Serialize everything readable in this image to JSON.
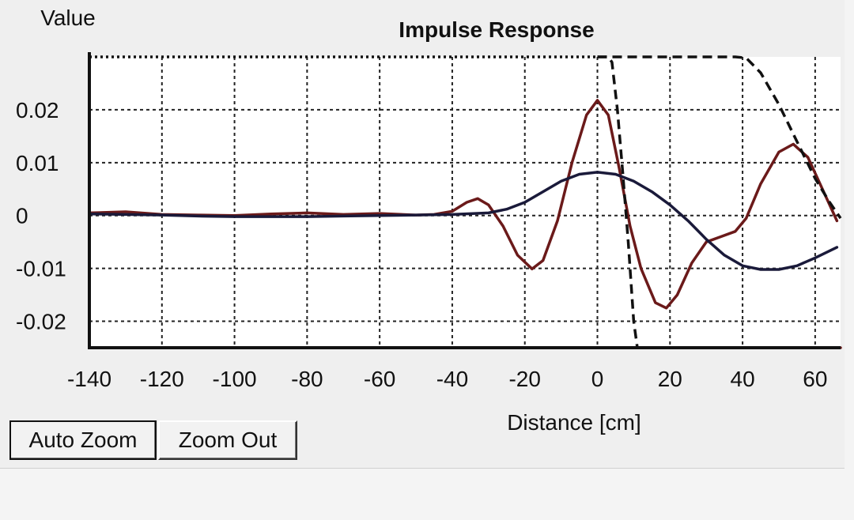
{
  "chart_data": {
    "type": "line",
    "title": "Impulse Response",
    "xlabel": "Distance [cm]",
    "ylabel": "Value",
    "xlim": [
      -140,
      67
    ],
    "ylim": [
      -0.025,
      0.03
    ],
    "x_ticks": [
      -140,
      -120,
      -100,
      -80,
      -60,
      -40,
      -20,
      0,
      20,
      40,
      60
    ],
    "y_ticks": [
      {
        "value": 0.02,
        "label": "0.02"
      },
      {
        "value": 0.01,
        "label": "0.01"
      },
      {
        "value": 0,
        "label": "0"
      },
      {
        "value": -0.01,
        "label": "-0.01"
      },
      {
        "value": -0.02,
        "label": "-0.02"
      }
    ],
    "grid": true,
    "series": [
      {
        "color": "#6b1a1a",
        "style": "solid",
        "points": [
          [
            -140,
            0.0005
          ],
          [
            -130,
            0.0007
          ],
          [
            -120,
            0.0002
          ],
          [
            -110,
            0.0001
          ],
          [
            -100,
            0.0
          ],
          [
            -90,
            0.0003
          ],
          [
            -80,
            0.0005
          ],
          [
            -70,
            0.0002
          ],
          [
            -60,
            0.0004
          ],
          [
            -50,
            0.0001
          ],
          [
            -45,
            0.0002
          ],
          [
            -40,
            0.0008
          ],
          [
            -36,
            0.0025
          ],
          [
            -33,
            0.0032
          ],
          [
            -30,
            0.002
          ],
          [
            -26,
            -0.002
          ],
          [
            -22,
            -0.0075
          ],
          [
            -18,
            -0.0101
          ],
          [
            -15,
            -0.0085
          ],
          [
            -11,
            -0.001
          ],
          [
            -7,
            0.01
          ],
          [
            -3,
            0.019
          ],
          [
            0,
            0.0218
          ],
          [
            3,
            0.019
          ],
          [
            6,
            0.009
          ],
          [
            9,
            -0.002
          ],
          [
            12,
            -0.01
          ],
          [
            16,
            -0.0165
          ],
          [
            19,
            -0.0175
          ],
          [
            22,
            -0.015
          ],
          [
            26,
            -0.009
          ],
          [
            30,
            -0.005
          ],
          [
            34,
            -0.004
          ],
          [
            38,
            -0.003
          ],
          [
            41,
            -0.0005
          ],
          [
            45,
            0.006
          ],
          [
            50,
            0.012
          ],
          [
            54,
            0.0135
          ],
          [
            58,
            0.011
          ],
          [
            62,
            0.005
          ],
          [
            66,
            -0.001
          ]
        ]
      },
      {
        "color": "#1a1a3a",
        "style": "solid",
        "points": [
          [
            -140,
            0.0003
          ],
          [
            -130,
            0.0002
          ],
          [
            -120,
            0.0001
          ],
          [
            -110,
            -0.0001
          ],
          [
            -100,
            -0.0002
          ],
          [
            -90,
            -0.0002
          ],
          [
            -80,
            -0.0002
          ],
          [
            -70,
            -0.0001
          ],
          [
            -60,
            0.0
          ],
          [
            -50,
            0.0001
          ],
          [
            -40,
            0.0002
          ],
          [
            -30,
            0.0005
          ],
          [
            -25,
            0.0012
          ],
          [
            -20,
            0.0025
          ],
          [
            -15,
            0.0045
          ],
          [
            -10,
            0.0065
          ],
          [
            -5,
            0.0078
          ],
          [
            0,
            0.0082
          ],
          [
            5,
            0.0078
          ],
          [
            10,
            0.0065
          ],
          [
            15,
            0.0045
          ],
          [
            20,
            0.002
          ],
          [
            25,
            -0.001
          ],
          [
            30,
            -0.0045
          ],
          [
            35,
            -0.0075
          ],
          [
            40,
            -0.0095
          ],
          [
            45,
            -0.0102
          ],
          [
            50,
            -0.0102
          ],
          [
            55,
            -0.0095
          ],
          [
            60,
            -0.008
          ],
          [
            66,
            -0.006
          ]
        ]
      },
      {
        "color": "#111111",
        "style": "dashed",
        "points": [
          [
            0,
            0.03
          ],
          [
            3,
            0.03
          ],
          [
            4,
            0.029
          ],
          [
            5.5,
            0.02
          ],
          [
            7,
            0.008
          ],
          [
            8.5,
            -0.005
          ],
          [
            10,
            -0.02
          ],
          [
            11,
            -0.025
          ]
        ]
      },
      {
        "color": "#111111",
        "style": "dashed",
        "points": [
          [
            0,
            0.03
          ],
          [
            38,
            0.03
          ],
          [
            41,
            0.0298
          ],
          [
            45,
            0.027
          ],
          [
            50,
            0.021
          ],
          [
            55,
            0.014
          ],
          [
            60,
            0.007
          ],
          [
            64,
            0.0025
          ],
          [
            67,
            -0.0005
          ]
        ]
      },
      {
        "color": "#111111",
        "style": "dotted",
        "points": [
          [
            -140,
            0.03
          ],
          [
            0,
            0.03
          ]
        ]
      },
      {
        "color": "#6b1a1a",
        "style": "solid",
        "points": [
          [
            11,
            -0.025
          ],
          [
            67,
            -0.025
          ]
        ]
      }
    ]
  },
  "buttons": {
    "auto_zoom": "Auto Zoom",
    "zoom_out": "Zoom Out"
  }
}
